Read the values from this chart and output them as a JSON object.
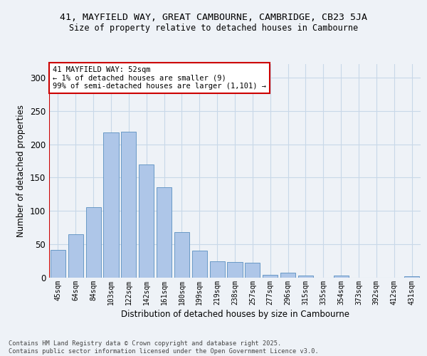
{
  "title_line1": "41, MAYFIELD WAY, GREAT CAMBOURNE, CAMBRIDGE, CB23 5JA",
  "title_line2": "Size of property relative to detached houses in Cambourne",
  "xlabel": "Distribution of detached houses by size in Cambourne",
  "ylabel": "Number of detached properties",
  "categories": [
    "45sqm",
    "64sqm",
    "84sqm",
    "103sqm",
    "122sqm",
    "142sqm",
    "161sqm",
    "180sqm",
    "199sqm",
    "219sqm",
    "238sqm",
    "257sqm",
    "277sqm",
    "296sqm",
    "315sqm",
    "335sqm",
    "354sqm",
    "373sqm",
    "392sqm",
    "412sqm",
    "431sqm"
  ],
  "values": [
    42,
    65,
    106,
    218,
    219,
    170,
    135,
    68,
    41,
    25,
    24,
    22,
    4,
    8,
    3,
    0,
    3,
    0,
    0,
    0,
    2
  ],
  "bar_color": "#aec6e8",
  "bar_edge_color": "#5a8fc0",
  "annotation_box_color": "#cc0000",
  "annotation_text": "41 MAYFIELD WAY: 52sqm\n← 1% of detached houses are smaller (9)\n99% of semi-detached houses are larger (1,101) →",
  "ylim": [
    0,
    320
  ],
  "yticks": [
    0,
    50,
    100,
    150,
    200,
    250,
    300
  ],
  "grid_color": "#c8d8e8",
  "footer_text": "Contains HM Land Registry data © Crown copyright and database right 2025.\nContains public sector information licensed under the Open Government Licence v3.0.",
  "bg_color": "#eef2f7"
}
